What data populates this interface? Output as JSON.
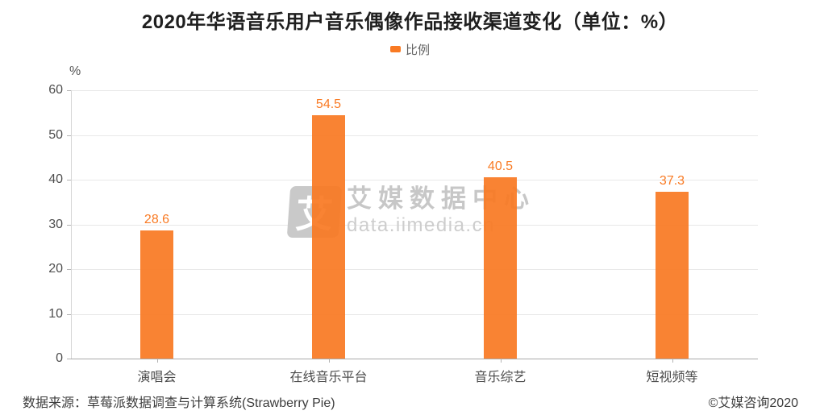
{
  "chart_data": {
    "type": "bar",
    "title": "2020年华语音乐用户音乐偶像作品接收渠道变化（单位：%）",
    "legend": "比例",
    "categories": [
      "演唱会",
      "在线音乐平台",
      "音乐综艺",
      "短视频等"
    ],
    "values": [
      28.6,
      54.5,
      40.5,
      37.3
    ],
    "ylabel": "%",
    "ylim": [
      0,
      60
    ],
    "yticks": [
      0,
      10,
      20,
      30,
      40,
      50,
      60
    ],
    "grid": true,
    "legend_position": "top-center",
    "bar_color": "#F97A23",
    "label_color": "#F97A23"
  },
  "watermark": {
    "logo_glyph": "艾",
    "name": "艾媒数据中心",
    "domain": "data.iimedia.cn"
  },
  "footer": {
    "source": "数据来源：草莓派数据调查与计算系统(Strawberry Pie)",
    "copyright": "©艾媒咨询2020"
  }
}
